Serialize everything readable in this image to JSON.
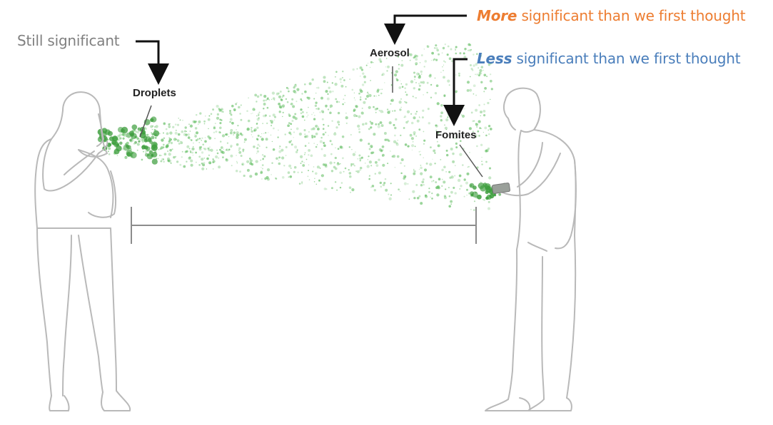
{
  "labels": {
    "droplets": "Droplets",
    "aerosol": "Aerosol",
    "fomites": "Fomites"
  },
  "annotations": {
    "still": {
      "text": "Still significant"
    },
    "more": {
      "emphasis": "More",
      "rest": " significant than we first thought"
    },
    "less": {
      "emphasis": "Less",
      "rest": " significant than we first thought"
    }
  },
  "colors": {
    "gray_text": "#808080",
    "more_accent": "#ED7D31",
    "less_accent": "#4A7EBB",
    "particle_green": "#5DBB5D",
    "droplet_green": "#3E9E3E",
    "figure_line": "#b9b9b9",
    "arrow": "#111111"
  },
  "icons": [
    "woman-figure-icon",
    "man-figure-icon",
    "phone-icon"
  ]
}
